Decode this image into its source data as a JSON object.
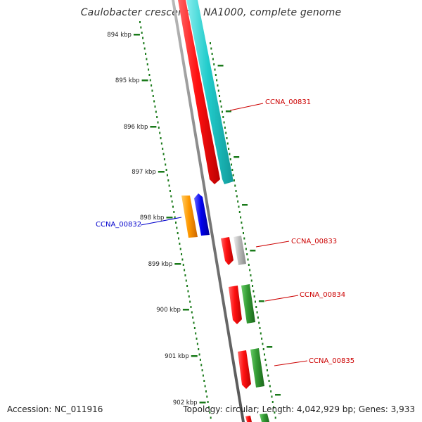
{
  "title": "Caulobacter crescentus NA1000, complete genome",
  "footer": {
    "accession": "Accession: NC_011916",
    "summary": "Topology: circular; Length: 4,042,929 bp; Genes: 3,933"
  },
  "ruler": {
    "ticks": [
      "894 kbp",
      "895 kbp",
      "896 kbp",
      "897 kbp",
      "898 kbp",
      "899 kbp",
      "900 kbp",
      "901 kbp",
      "902 kbp"
    ]
  },
  "genes": [
    {
      "label": "CCNA_00831",
      "color": "#cc0000"
    },
    {
      "label": "CCNA_00832",
      "color": "#0000cc"
    },
    {
      "label": "CCNA_00833",
      "color": "#cc0000"
    },
    {
      "label": "CCNA_00834",
      "color": "#cc0000"
    },
    {
      "label": "CCNA_00835",
      "color": "#cc0000"
    }
  ],
  "colors": {
    "backbone": "#808080",
    "ruler": "#1a7a1a",
    "cds": "#ee1111",
    "trna_cyan": "#22cccc",
    "orange": "#ff9900",
    "blue": "#0000ee",
    "green": "#339933",
    "grey": "#bbbbbb"
  }
}
